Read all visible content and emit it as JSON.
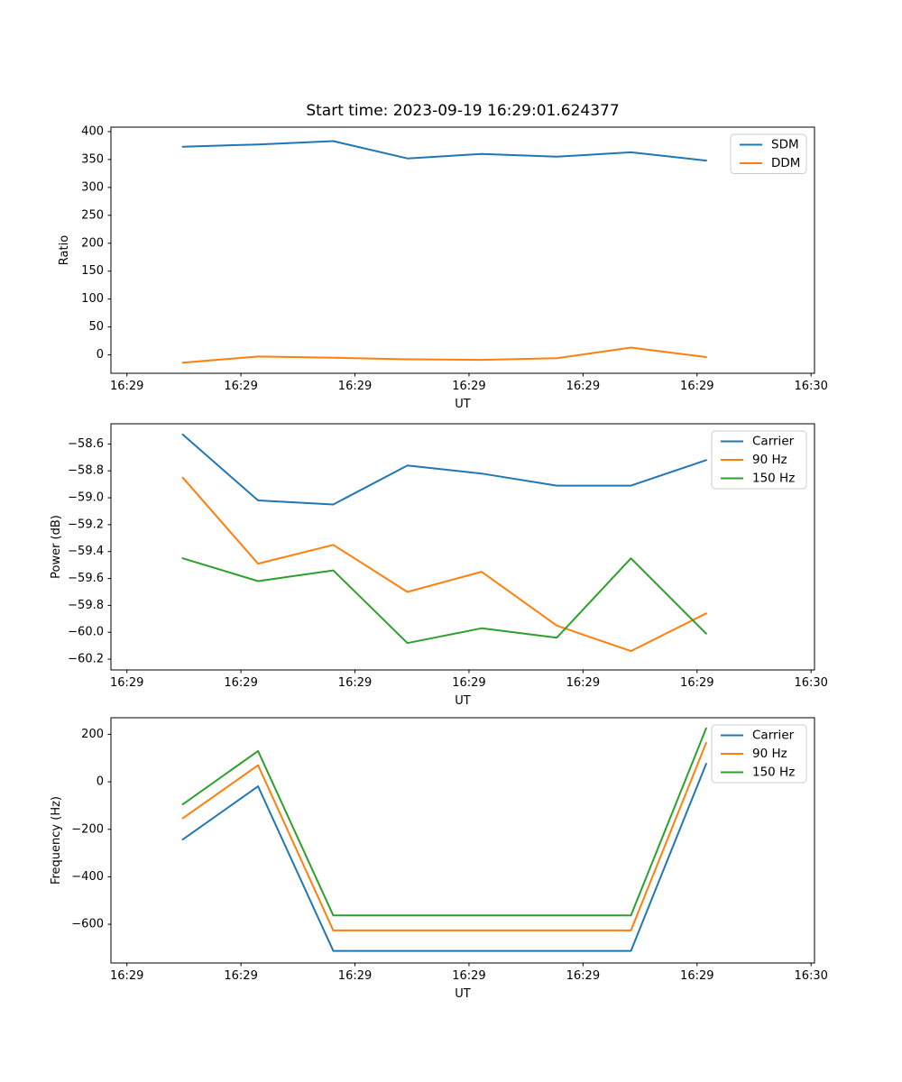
{
  "title": "Start time: 2023-09-19 16:29:01.624377",
  "colors": {
    "blue": "#1f77b4",
    "orange": "#ff7f0e",
    "green": "#2ca02c"
  },
  "chart_data": [
    {
      "type": "line",
      "title": "Start time: 2023-09-19 16:29:01.624377",
      "xlabel": "UT",
      "ylabel": "Ratio",
      "grid": false,
      "legend_position": "upper right",
      "x_seconds": [
        4.9,
        11.5,
        18.1,
        24.6,
        31.1,
        37.7,
        44.2,
        50.8
      ],
      "xlim_seconds": [
        -1.4,
        60.3
      ],
      "xtick_seconds": [
        0,
        10,
        20,
        30,
        40,
        50,
        60
      ],
      "xtick_labels": [
        "16:29",
        "16:29",
        "16:29",
        "16:29",
        "16:29",
        "16:29",
        "16:30"
      ],
      "ylim": [
        -33,
        408
      ],
      "yticks": [
        0,
        50,
        100,
        150,
        200,
        250,
        300,
        350,
        400
      ],
      "ytick_labels": [
        "0",
        "50",
        "100",
        "150",
        "200",
        "250",
        "300",
        "350",
        "400"
      ],
      "series": [
        {
          "name": "SDM",
          "color": "#1f77b4",
          "values": [
            373,
            377,
            383,
            352,
            360,
            355,
            363,
            348
          ]
        },
        {
          "name": "DDM",
          "color": "#ff7f0e",
          "values": [
            -14,
            -3,
            -5,
            -8,
            -9,
            -6,
            13,
            -4
          ]
        }
      ]
    },
    {
      "type": "line",
      "title": "",
      "xlabel": "UT",
      "ylabel": "Power (dB)",
      "grid": false,
      "legend_position": "upper right",
      "x_seconds": [
        4.9,
        11.5,
        18.1,
        24.6,
        31.1,
        37.7,
        44.2,
        50.8
      ],
      "xlim_seconds": [
        -1.4,
        60.3
      ],
      "xtick_seconds": [
        0,
        10,
        20,
        30,
        40,
        50,
        60
      ],
      "xtick_labels": [
        "16:29",
        "16:29",
        "16:29",
        "16:29",
        "16:29",
        "16:29",
        "16:30"
      ],
      "ylim": [
        -60.28,
        -58.45
      ],
      "yticks": [
        -60.2,
        -60.0,
        -59.8,
        -59.6,
        -59.4,
        -59.2,
        -59.0,
        -58.8,
        -58.6
      ],
      "ytick_labels": [
        "−60.2",
        "−60.0",
        "−59.8",
        "−59.6",
        "−59.4",
        "−59.2",
        "−59.0",
        "−58.8",
        "−58.6"
      ],
      "series": [
        {
          "name": "Carrier",
          "color": "#1f77b4",
          "values": [
            -58.53,
            -59.02,
            -59.05,
            -58.76,
            -58.82,
            -58.91,
            -58.91,
            -58.72
          ]
        },
        {
          "name": "90 Hz",
          "color": "#ff7f0e",
          "values": [
            -58.85,
            -59.49,
            -59.35,
            -59.7,
            -59.55,
            -59.95,
            -60.14,
            -59.86
          ]
        },
        {
          "name": "150 Hz",
          "color": "#2ca02c",
          "values": [
            -59.45,
            -59.62,
            -59.54,
            -60.08,
            -59.97,
            -60.04,
            -59.45,
            -60.01
          ]
        }
      ]
    },
    {
      "type": "line",
      "title": "",
      "xlabel": "UT",
      "ylabel": "Frequency (Hz)",
      "grid": false,
      "legend_position": "upper right",
      "x_seconds": [
        4.9,
        11.5,
        18.1,
        24.6,
        31.1,
        37.7,
        44.2,
        50.8
      ],
      "xlim_seconds": [
        -1.4,
        60.3
      ],
      "xtick_seconds": [
        0,
        10,
        20,
        30,
        40,
        50,
        60
      ],
      "xtick_labels": [
        "16:29",
        "16:29",
        "16:29",
        "16:29",
        "16:29",
        "16:29",
        "16:30"
      ],
      "ylim": [
        -763,
        270
      ],
      "yticks": [
        -600,
        -400,
        -200,
        0,
        200
      ],
      "ytick_labels": [
        "−600",
        "−400",
        "−200",
        "0",
        "200"
      ],
      "series": [
        {
          "name": "Carrier",
          "color": "#1f77b4",
          "values": [
            -243,
            -19,
            -712,
            -712,
            -712,
            -712,
            -712,
            76
          ]
        },
        {
          "name": "90 Hz",
          "color": "#ff7f0e",
          "values": [
            -154,
            70,
            -626,
            -626,
            -626,
            -626,
            -626,
            164
          ]
        },
        {
          "name": "150 Hz",
          "color": "#2ca02c",
          "values": [
            -95,
            130,
            -563,
            -563,
            -563,
            -563,
            -563,
            225
          ]
        }
      ]
    }
  ]
}
